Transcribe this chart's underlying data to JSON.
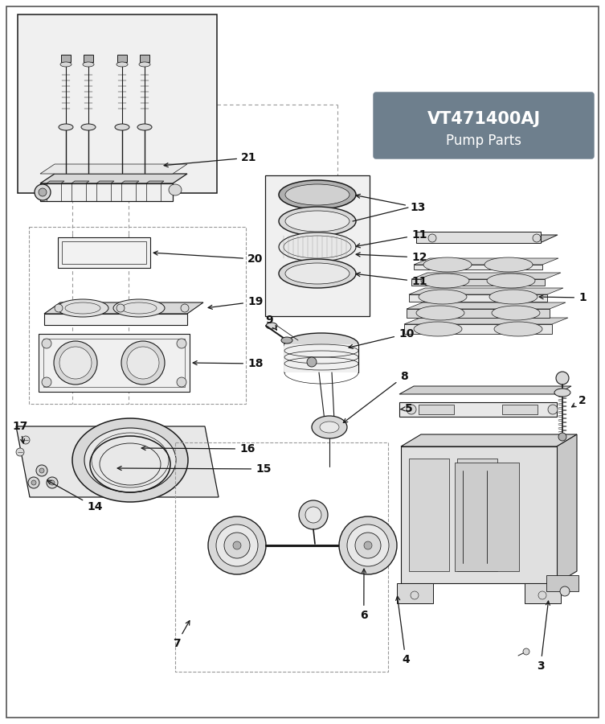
{
  "bg_color": "#ffffff",
  "line_color": "#1a1a1a",
  "dashed_color": "#999999",
  "fill_light": "#f0f0f0",
  "fill_mid": "#d8d8d8",
  "fill_dark": "#b0b0b0",
  "title_bg": "#6e7f8d",
  "title_text": "#ffffff",
  "title_line1": "VT471400AJ",
  "title_line2": "Pump Parts",
  "lw_main": 0.9,
  "lw_thin": 0.5,
  "lw_thick": 1.5,
  "label_fs": 10
}
